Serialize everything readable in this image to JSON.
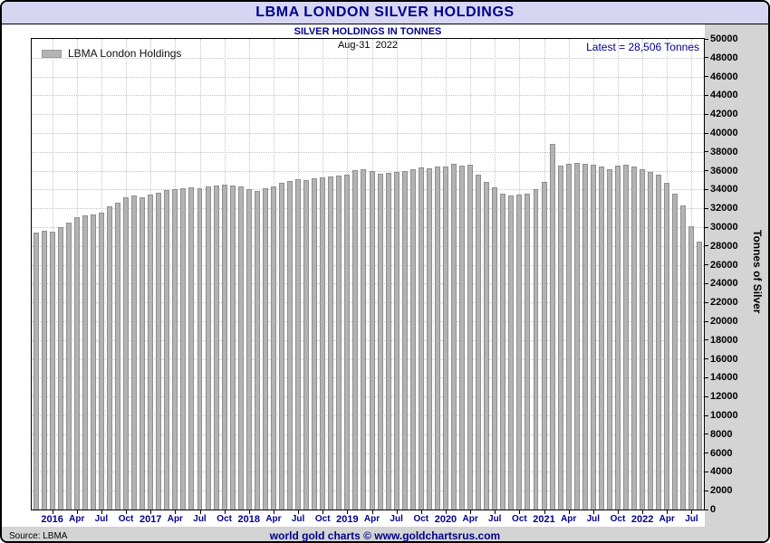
{
  "title_bar": {
    "title": "LBMA LONDON SILVER HOLDINGS"
  },
  "header": {
    "subtitle": "SILVER HOLDINGS IN TONNES",
    "date": "Aug-31  2022",
    "latest": "Latest = 28,506 Tonnes"
  },
  "legend": {
    "label": "LBMA London Holdings"
  },
  "y_axis": {
    "title": "Tonnes of Silver"
  },
  "footer": {
    "source": "Source: LBMA",
    "credit": "world gold charts © www.goldchartsrus.com"
  },
  "colors": {
    "navy": "#00008b",
    "titlebar_bg": "#d6d6f2",
    "margin_gray": "#d4d4d4",
    "bar_fill": "#b3b3b3",
    "bar_edge": "#8f8f8f",
    "grid": "#c3c3c3"
  },
  "chart_data": {
    "type": "bar",
    "title": "SILVER HOLDINGS IN TONNES",
    "date_label": "Aug-31 2022",
    "xlabel": "",
    "ylabel": "Tonnes of Silver",
    "ylim": [
      0,
      50000
    ],
    "y_tick_step": 2000,
    "grid": true,
    "legend_position": "top-left",
    "legend": [
      "LBMA London Holdings"
    ],
    "latest_tonnes": 28506,
    "x_month_names": {
      "04": "Apr",
      "07": "Jul",
      "10": "Oct"
    },
    "months": [
      "2015-11",
      "2015-12",
      "2016-01",
      "2016-02",
      "2016-03",
      "2016-04",
      "2016-05",
      "2016-06",
      "2016-07",
      "2016-08",
      "2016-09",
      "2016-10",
      "2016-11",
      "2016-12",
      "2017-01",
      "2017-02",
      "2017-03",
      "2017-04",
      "2017-05",
      "2017-06",
      "2017-07",
      "2017-08",
      "2017-09",
      "2017-10",
      "2017-11",
      "2017-12",
      "2018-01",
      "2018-02",
      "2018-03",
      "2018-04",
      "2018-05",
      "2018-06",
      "2018-07",
      "2018-08",
      "2018-09",
      "2018-10",
      "2018-11",
      "2018-12",
      "2019-01",
      "2019-02",
      "2019-03",
      "2019-04",
      "2019-05",
      "2019-06",
      "2019-07",
      "2019-08",
      "2019-09",
      "2019-10",
      "2019-11",
      "2019-12",
      "2020-01",
      "2020-02",
      "2020-03",
      "2020-04",
      "2020-05",
      "2020-06",
      "2020-07",
      "2020-08",
      "2020-09",
      "2020-10",
      "2020-11",
      "2020-12",
      "2021-01",
      "2021-02",
      "2021-03",
      "2021-04",
      "2021-05",
      "2021-06",
      "2021-07",
      "2021-08",
      "2021-09",
      "2021-10",
      "2021-11",
      "2021-12",
      "2022-01",
      "2022-02",
      "2022-03",
      "2022-04",
      "2022-05",
      "2022-06",
      "2022-07",
      "2022-08"
    ],
    "values": [
      29400,
      29600,
      29500,
      30000,
      30500,
      31100,
      31250,
      31300,
      31500,
      32200,
      32600,
      33200,
      33350,
      33200,
      33500,
      33700,
      33900,
      34000,
      34100,
      34200,
      34150,
      34300,
      34400,
      34500,
      34450,
      34300,
      34000,
      33800,
      34100,
      34300,
      34700,
      34900,
      35100,
      35000,
      35150,
      35300,
      35400,
      35450,
      35600,
      36100,
      36200,
      36000,
      35700,
      35800,
      35900,
      36000,
      36200,
      36300,
      36250,
      36400,
      36450,
      36700,
      36500,
      36600,
      35600,
      34800,
      34200,
      33600,
      33400,
      33500,
      33600,
      34000,
      34800,
      38800,
      36500,
      36700,
      36800,
      36700,
      36600,
      36400,
      36200,
      36500,
      36600,
      36450,
      36200,
      35900,
      35600,
      34700,
      33600,
      32300,
      30100,
      28506
    ]
  }
}
